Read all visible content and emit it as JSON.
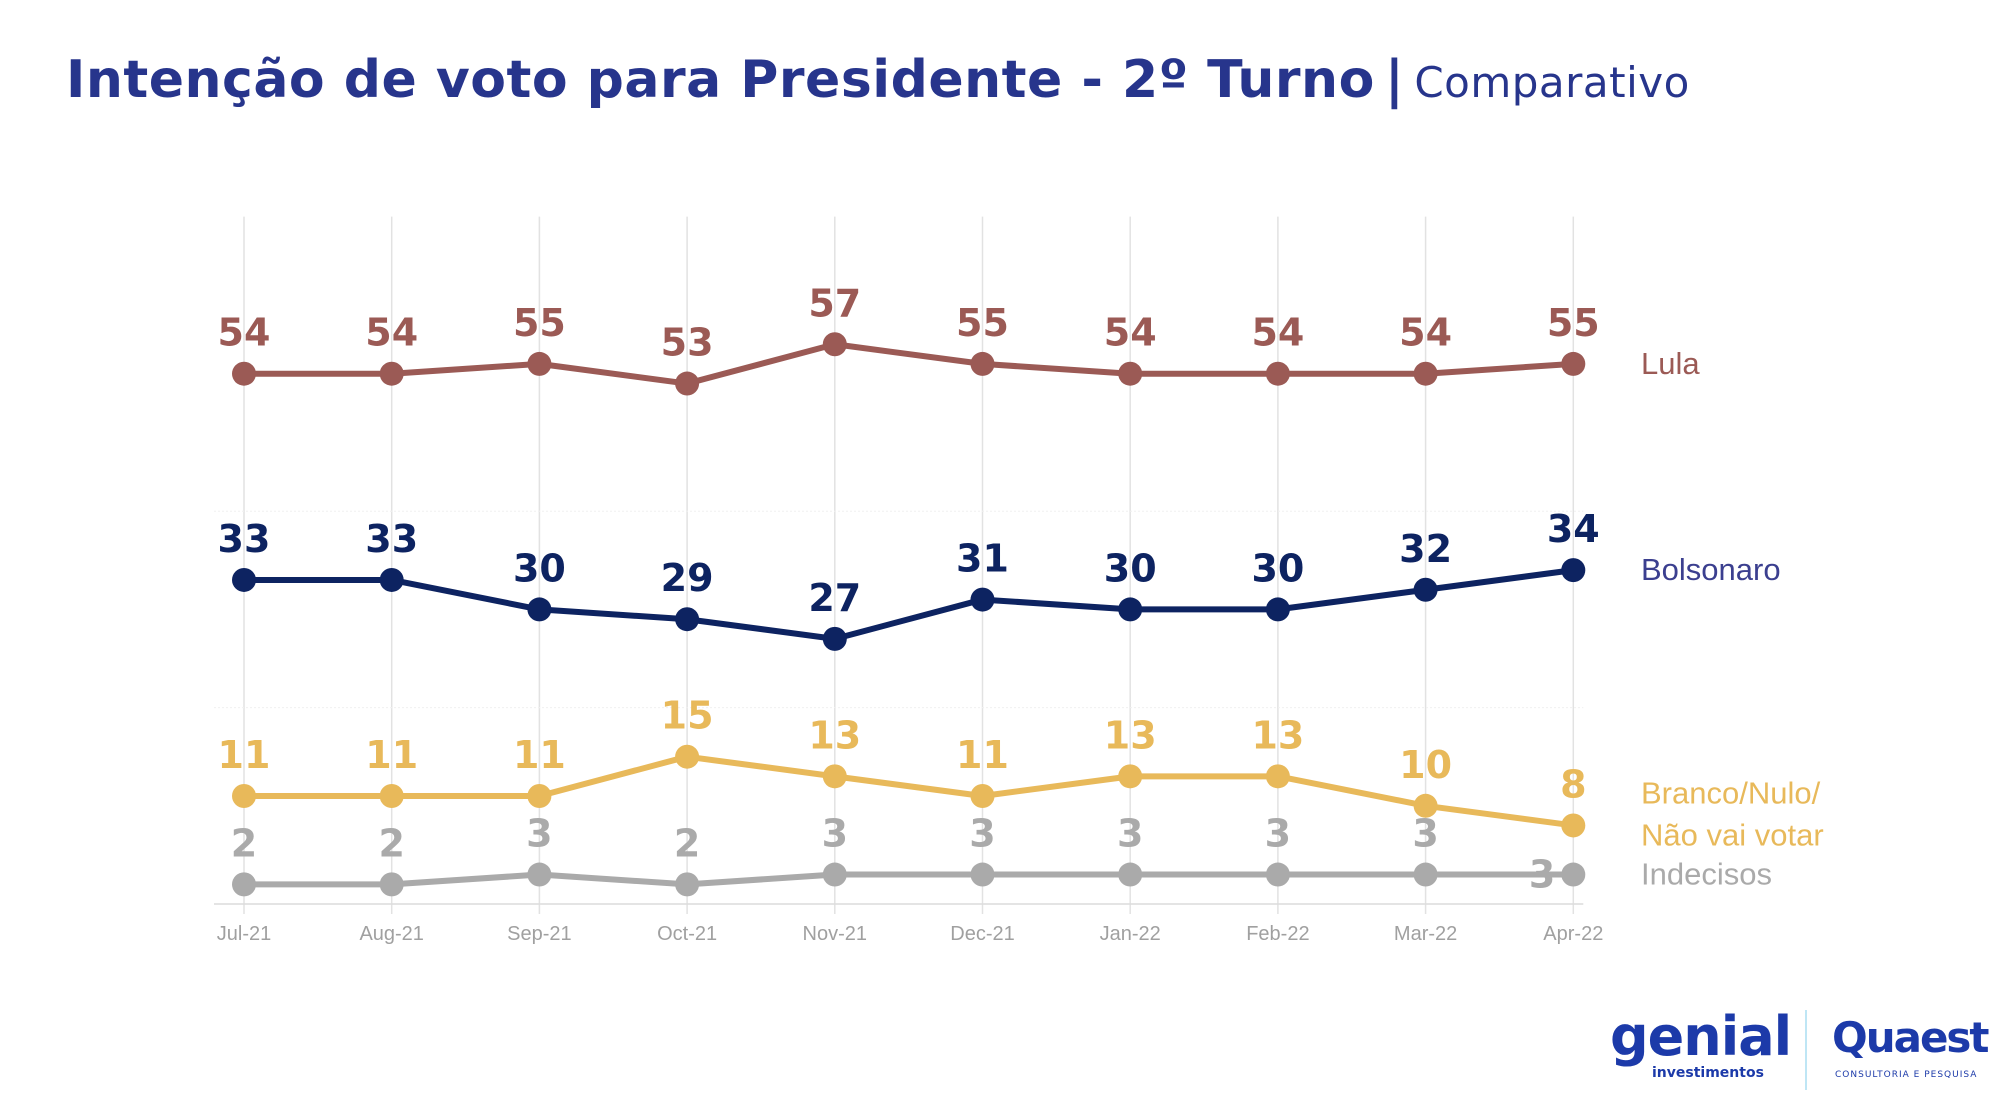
{
  "title": {
    "main": "Intenção de voto para Presidente - 2º Turno",
    "separator": "|",
    "subtitle": "Comparativo"
  },
  "logos": {
    "genial": "genial",
    "genial_sub": "investimentos",
    "quaest": "Quaest",
    "quaest_sub": "CONSULTORIA E PESQUISA"
  },
  "chart_data": {
    "type": "line",
    "title": "Intenção de voto para Presidente - 2º Turno | Comparativo",
    "xlabel": "",
    "ylabel": "",
    "categories": [
      "Jul-21",
      "Aug-21",
      "Sep-21",
      "Oct-21",
      "Nov-21",
      "Dec-21",
      "Jan-22",
      "Feb-22",
      "Mar-22",
      "Apr-22"
    ],
    "ylim": [
      0,
      70
    ],
    "grid": true,
    "legend": "right (end of lines)",
    "series": [
      {
        "name": "Lula",
        "color": "#9b5a55",
        "values": [
          54,
          54,
          55,
          53,
          57,
          55,
          54,
          54,
          54,
          55
        ]
      },
      {
        "name": "Bolsonaro",
        "color": "#0d2361",
        "label_color": "#3b3f8f",
        "values": [
          33,
          33,
          30,
          29,
          27,
          31,
          30,
          30,
          32,
          34
        ]
      },
      {
        "name": "Branco/Nulo/ Não vai votar",
        "legend_lines": [
          "Branco/Nulo/",
          "Não vai votar"
        ],
        "color": "#e8b95a",
        "values": [
          11,
          11,
          11,
          15,
          13,
          11,
          13,
          13,
          10,
          8
        ]
      },
      {
        "name": "Indecisos",
        "color": "#aaaaaa",
        "values": [
          2,
          2,
          3,
          2,
          3,
          3,
          3,
          3,
          3,
          3
        ]
      }
    ]
  }
}
